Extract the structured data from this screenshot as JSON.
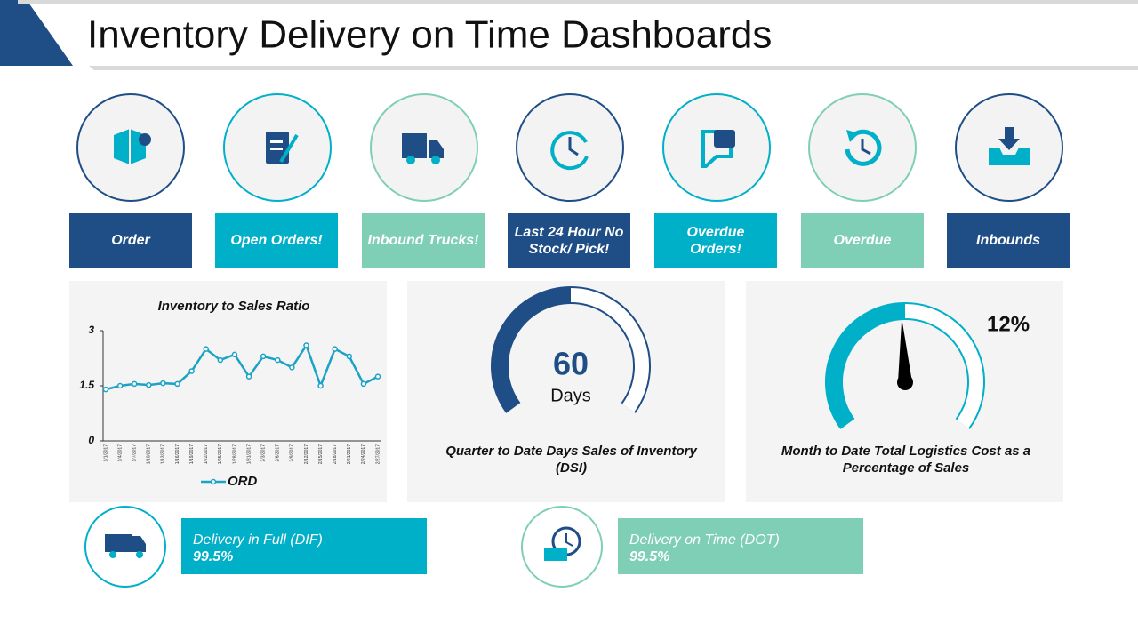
{
  "title": "Inventory Delivery on Time Dashboards",
  "tiles": [
    "Order",
    "Open Orders!",
    "Inbound Trucks!",
    "Last 24 Hour No Stock/ Pick!",
    "Overdue Orders!",
    "Overdue",
    "Inbounds"
  ],
  "stats": [
    {
      "label": "Delivery in Full (DIF)",
      "value": "99.5%"
    },
    {
      "label": "Delivery on Time (DOT)",
      "value": "99.5%"
    }
  ],
  "chart_data": [
    {
      "type": "line",
      "title": "Inventory to Sales Ratio",
      "x": [
        "1/1/2017",
        "1/4/2017",
        "1/7/2017",
        "1/10/2017",
        "1/13/2017",
        "1/16/2017",
        "1/19/2017",
        "1/22/2017",
        "1/25/2017",
        "1/28/2017",
        "1/31/2017",
        "2/3/2017",
        "2/6/2017",
        "2/9/2017",
        "2/12/2017",
        "2/15/2017",
        "2/18/2017",
        "2/21/2017",
        "2/24/2017",
        "2/27/2017"
      ],
      "series": [
        {
          "name": "ORD",
          "color": "#1aa3c4",
          "values": [
            1.4,
            1.5,
            1.55,
            1.52,
            1.57,
            1.55,
            1.9,
            2.5,
            2.2,
            2.35,
            1.75,
            2.3,
            2.2,
            2.0,
            2.6,
            1.5,
            2.5,
            2.3,
            1.55,
            1.75
          ]
        }
      ],
      "ylim": [
        0,
        3
      ],
      "yticks": [
        0,
        1.5,
        3
      ]
    },
    {
      "type": "gauge",
      "value": 60,
      "unit": "Days",
      "color": "#1f4e87",
      "ylim": [
        0,
        120
      ],
      "caption": "Quarter to Date Days Sales of Inventory (DSI)"
    },
    {
      "type": "gauge",
      "value": 12,
      "value_label": "12%",
      "color": "#00afc8",
      "ylim": [
        0,
        24
      ],
      "caption": "Month to Date Total Logistics Cost as a Percentage of Sales"
    }
  ]
}
